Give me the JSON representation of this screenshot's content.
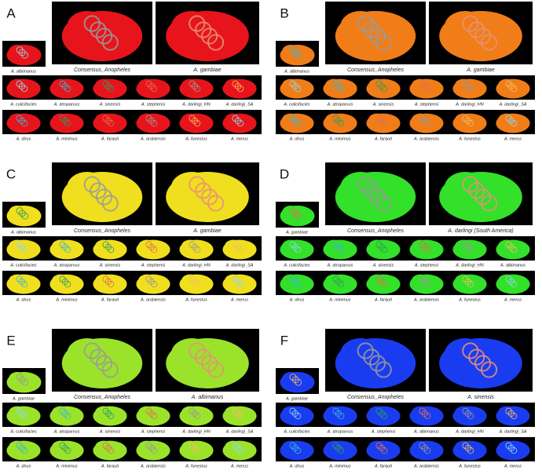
{
  "panels": [
    {
      "letter": "A",
      "small": "A. albimanus",
      "large": [
        "Consensus_Anopheles",
        "A. gambiae"
      ],
      "rows": [
        [
          "A. culicifacies",
          "A. atroparvus",
          "A. sinensis",
          "A. stephensi",
          "A. darlingi_HN",
          "A. darlingi_SA"
        ],
        [
          "A. dirus",
          "A. minimus",
          "A. farauti",
          "A. arabiensis",
          "A. funestus",
          "A. merus"
        ]
      ]
    },
    {
      "letter": "B",
      "small": "A. albimanus",
      "large": [
        "Consensus_Anopheles",
        "A. gambiae"
      ],
      "rows": [
        [
          "A. culicifacies",
          "A. atroparvus",
          "A. sinensis",
          "A. stephensi",
          "A. darlingi_HN",
          "A. darlingi_SA"
        ],
        [
          "A. dirus",
          "A. minimus",
          "A. farauti",
          "A. arabiensis",
          "A. funestus",
          "A. merus"
        ]
      ]
    },
    {
      "letter": "C",
      "small": "A. albimanus",
      "large": [
        "Consensus_Anopheles",
        "A. gambiae"
      ],
      "rows": [
        [
          "A. culicifacies",
          "A. atroparvus",
          "A. sinensis",
          "A. stephensi",
          "A. darlingi_HN",
          "A. darlingi_SA"
        ],
        [
          "A. dirus",
          "A. minimus",
          "A. farauti",
          "A. arabiensis",
          "A. funestus",
          "A. merus"
        ]
      ]
    },
    {
      "letter": "D",
      "small": "A. gambiae",
      "large": [
        "Consensus_Anopheles",
        "A. darlingi (South America)"
      ],
      "rows": [
        [
          "A. culicifacies",
          "A. atroparvus",
          "A. sinensis",
          "A. stephensi",
          "A. darlingi_HN",
          "A. albimanus"
        ],
        [
          "A. dirus",
          "A. minimus",
          "A. farauti",
          "A. arabiensis",
          "A. funestus",
          "A. merus"
        ]
      ]
    },
    {
      "letter": "E",
      "small": "A. gambiae",
      "large": [
        "Consensus_Anopheles",
        "A. albimanus"
      ],
      "rows": [
        [
          "A. culicifacies",
          "A. atroparvus",
          "A. sinensis",
          "A. stephensi",
          "A. darlingi_HN",
          "A. darlingi_SA"
        ],
        [
          "A. dirus",
          "A. minimus",
          "A. farauti",
          "A. arabiensis",
          "A. funestus",
          "A. merus"
        ]
      ]
    },
    {
      "letter": "F",
      "small": "A. gambiae",
      "large": [
        "Consensus_Anopheles",
        "A. sinensis"
      ],
      "rows": [
        [
          "A. culicifacies",
          "A. atroparvus",
          "A. stephensi",
          "A. albimanus",
          "A. darlingi_HN",
          "A. darlingi_SA"
        ],
        [
          "A. dirus",
          "A. minimus",
          "A. farauti",
          "A. arabiensis",
          "A. funestus",
          "A. merus"
        ]
      ]
    }
  ]
}
